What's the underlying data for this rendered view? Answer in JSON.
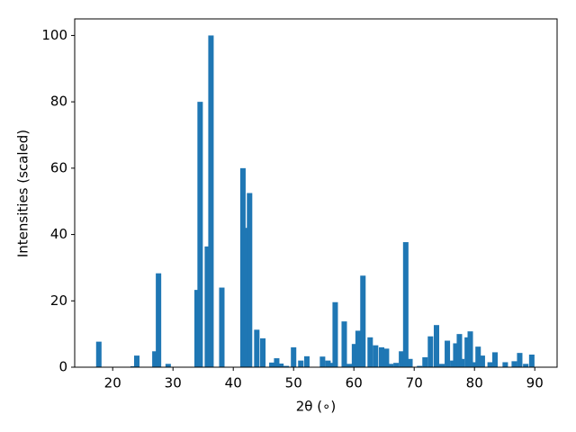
{
  "chart_data": {
    "type": "bar",
    "xlabel": "2θ (∘)",
    "ylabel": "Intensities (scaled)",
    "color": "#1f77b4",
    "x": [
      17.7,
      23.4,
      24.0,
      27.0,
      27.6,
      29.2,
      34.0,
      34.5,
      35.7,
      36.3,
      38.1,
      41.6,
      42.1,
      42.7,
      43.9,
      44.9,
      46.4,
      47.2,
      47.9,
      48.8,
      50.0,
      51.2,
      52.2,
      54.8,
      55.7,
      56.3,
      56.9,
      58.4,
      59.3,
      60.1,
      60.7,
      61.5,
      62.7,
      63.6,
      64.6,
      65.4,
      66.1,
      67.0,
      67.9,
      68.6,
      69.3,
      70.9,
      71.8,
      72.7,
      73.7,
      74.6,
      75.5,
      76.4,
      76.9,
      77.5,
      77.9,
      78.8,
      79.3,
      79.8,
      80.6,
      81.3,
      82.6,
      83.4,
      85.1,
      86.6,
      87.5,
      88.5,
      89.5
    ],
    "values": [
      7.7,
      0.3,
      3.5,
      4.8,
      28.3,
      1.0,
      23.3,
      80,
      36.4,
      100,
      24,
      60,
      42,
      52.5,
      11.3,
      8.7,
      1.4,
      2.7,
      1.1,
      0.4,
      6,
      2,
      3.3,
      3.2,
      2,
      1.3,
      19.6,
      13.8,
      1,
      7,
      11,
      27.6,
      9,
      6.6,
      6,
      5.6,
      1,
      1.3,
      4.8,
      37.7,
      2.5,
      0.4,
      3,
      9.3,
      12.7,
      1,
      8,
      2,
      7.2,
      10,
      2.5,
      9,
      10.8,
      1.5,
      6.2,
      3.5,
      1.5,
      4.5,
      1.5,
      1.8,
      4.3,
      1,
      3.8
    ],
    "xlim": [
      13.7,
      93.7
    ],
    "ylim": [
      0,
      105
    ],
    "xticks": [
      20,
      30,
      40,
      50,
      60,
      70,
      80,
      90
    ],
    "yticks": [
      0,
      20,
      40,
      60,
      80,
      100
    ]
  }
}
